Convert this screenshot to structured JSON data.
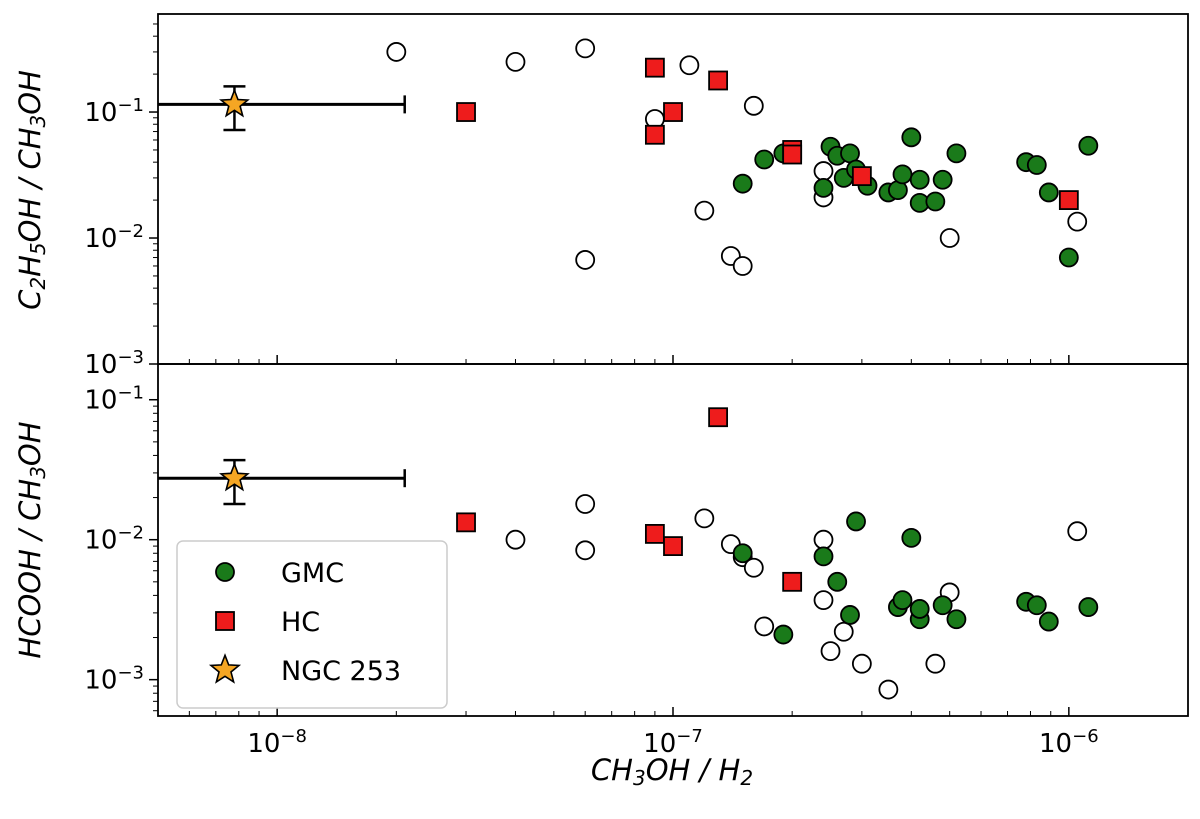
{
  "chart_data": {
    "type": "scatter",
    "xscale": "log",
    "yscale": "log",
    "xlim": [
      5e-09,
      2e-06
    ],
    "xlabel": "CH3OH / H2",
    "x_ticks": [
      {
        "value": 1e-08,
        "base": "10",
        "exp": "−8"
      },
      {
        "value": 1e-07,
        "base": "10",
        "exp": "−7"
      },
      {
        "value": 1e-06,
        "base": "10",
        "exp": "−6"
      }
    ],
    "colors": {
      "GMC": "#1a7a1a",
      "HC": "#ee1c1c",
      "NGC 253": "#f5a623",
      "open": "#ffffff",
      "edge": "#000000"
    },
    "legend": {
      "placement": "lower-left",
      "entries": [
        {
          "label": "GMC",
          "marker": "circle",
          "series": "GMC"
        },
        {
          "label": "HC",
          "marker": "square",
          "series": "HC"
        },
        {
          "label": "NGC 253",
          "marker": "star",
          "series": "NGC 253"
        }
      ]
    },
    "panels": [
      {
        "id": "top",
        "ylabel": "C2H5OH / CH3OH",
        "ylim": [
          0.001,
          0.6
        ],
        "y_ticks": [
          {
            "value": 0.1,
            "base": "10",
            "exp": "−1"
          },
          {
            "value": 0.01,
            "base": "10",
            "exp": "−2"
          },
          {
            "value": 0.001,
            "base": "10",
            "exp": "−3"
          }
        ],
        "series": [
          {
            "name": "open",
            "marker": "circle",
            "filled": false,
            "points": [
              [
                2e-08,
                0.3
              ],
              [
                4e-08,
                0.25
              ],
              [
                6e-08,
                0.32
              ],
              [
                6e-08,
                0.0067
              ],
              [
                9e-08,
                0.088
              ],
              [
                1.1e-07,
                0.235
              ],
              [
                1.2e-07,
                0.0165
              ],
              [
                1.4e-07,
                0.0072
              ],
              [
                1.5e-07,
                0.006
              ],
              [
                1.6e-07,
                0.112
              ],
              [
                2.4e-07,
                0.034
              ],
              [
                2.4e-07,
                0.021
              ],
              [
                5e-07,
                0.01
              ],
              [
                1.05e-06,
                0.0135
              ]
            ]
          },
          {
            "name": "GMC",
            "marker": "circle",
            "filled": true,
            "points": [
              [
                1.5e-07,
                0.027
              ],
              [
                1.7e-07,
                0.042
              ],
              [
                1.9e-07,
                0.047
              ],
              [
                2.4e-07,
                0.025
              ],
              [
                2.5e-07,
                0.053
              ],
              [
                2.6e-07,
                0.045
              ],
              [
                2.7e-07,
                0.03
              ],
              [
                2.8e-07,
                0.047
              ],
              [
                2.9e-07,
                0.035
              ],
              [
                3.1e-07,
                0.026
              ],
              [
                3.5e-07,
                0.023
              ],
              [
                3.7e-07,
                0.024
              ],
              [
                3.8e-07,
                0.032
              ],
              [
                4e-07,
                0.063
              ],
              [
                4.2e-07,
                0.019
              ],
              [
                4.2e-07,
                0.029
              ],
              [
                4.6e-07,
                0.0195
              ],
              [
                4.8e-07,
                0.029
              ],
              [
                5.2e-07,
                0.047
              ],
              [
                7.8e-07,
                0.04
              ],
              [
                8.3e-07,
                0.038
              ],
              [
                8.9e-07,
                0.023
              ],
              [
                1e-06,
                0.007
              ],
              [
                1.12e-06,
                0.054
              ]
            ]
          },
          {
            "name": "HC",
            "marker": "square",
            "filled": true,
            "points": [
              [
                3e-08,
                0.1
              ],
              [
                9e-08,
                0.225
              ],
              [
                9e-08,
                0.066
              ],
              [
                1e-07,
                0.1
              ],
              [
                1.3e-07,
                0.178
              ],
              [
                2e-07,
                0.05
              ],
              [
                2e-07,
                0.046
              ],
              [
                3e-07,
                0.031
              ],
              [
                1e-06,
                0.02
              ]
            ]
          },
          {
            "name": "NGC 253",
            "marker": "star",
            "filled": true,
            "points": [
              [
                7.8e-09,
                0.115
              ]
            ],
            "xerr_upper": 2.1e-08,
            "yerr": [
              0.072,
              0.16
            ]
          }
        ]
      },
      {
        "id": "bottom",
        "ylabel": "HCOOH / CH3OH",
        "ylim": [
          0.00055,
          0.18
        ],
        "y_ticks": [
          {
            "value": 0.1,
            "base": "10",
            "exp": "−1"
          },
          {
            "value": 0.01,
            "base": "10",
            "exp": "−2"
          },
          {
            "value": 0.001,
            "base": "10",
            "exp": "−3"
          }
        ],
        "series": [
          {
            "name": "open",
            "marker": "circle",
            "filled": false,
            "points": [
              [
                4e-08,
                0.01
              ],
              [
                6e-08,
                0.018
              ],
              [
                6e-08,
                0.0084
              ],
              [
                1.2e-07,
                0.0142
              ],
              [
                1.4e-07,
                0.0093
              ],
              [
                1.5e-07,
                0.0075
              ],
              [
                1.6e-07,
                0.0063
              ],
              [
                1.7e-07,
                0.0024
              ],
              [
                2.4e-07,
                0.01
              ],
              [
                2.4e-07,
                0.0037
              ],
              [
                2.5e-07,
                0.0016
              ],
              [
                2.7e-07,
                0.0022
              ],
              [
                3e-07,
                0.0013
              ],
              [
                3.5e-07,
                0.00085
              ],
              [
                4.6e-07,
                0.0013
              ],
              [
                5e-07,
                0.0042
              ],
              [
                1.05e-06,
                0.0115
              ]
            ]
          },
          {
            "name": "GMC",
            "marker": "circle",
            "filled": true,
            "points": [
              [
                1.5e-07,
                0.008
              ],
              [
                1.9e-07,
                0.0021
              ],
              [
                2.4e-07,
                0.0076
              ],
              [
                2.6e-07,
                0.005
              ],
              [
                2.8e-07,
                0.0029
              ],
              [
                2.9e-07,
                0.0135
              ],
              [
                3.7e-07,
                0.0033
              ],
              [
                3.8e-07,
                0.0037
              ],
              [
                4e-07,
                0.0103
              ],
              [
                4.2e-07,
                0.0027
              ],
              [
                4.2e-07,
                0.0032
              ],
              [
                4.8e-07,
                0.0034
              ],
              [
                5.2e-07,
                0.0027
              ],
              [
                7.8e-07,
                0.0036
              ],
              [
                8.3e-07,
                0.0034
              ],
              [
                8.9e-07,
                0.0026
              ],
              [
                1.12e-06,
                0.0033
              ]
            ]
          },
          {
            "name": "HC",
            "marker": "square",
            "filled": true,
            "points": [
              [
                3e-08,
                0.0133
              ],
              [
                9e-08,
                0.011
              ],
              [
                1e-07,
                0.009
              ],
              [
                1.3e-07,
                0.075
              ],
              [
                2e-07,
                0.005
              ]
            ]
          },
          {
            "name": "NGC 253",
            "marker": "star",
            "filled": true,
            "points": [
              [
                7.8e-09,
                0.0275
              ]
            ],
            "xerr_upper": 2.1e-08,
            "yerr": [
              0.018,
              0.037
            ]
          }
        ]
      }
    ]
  }
}
